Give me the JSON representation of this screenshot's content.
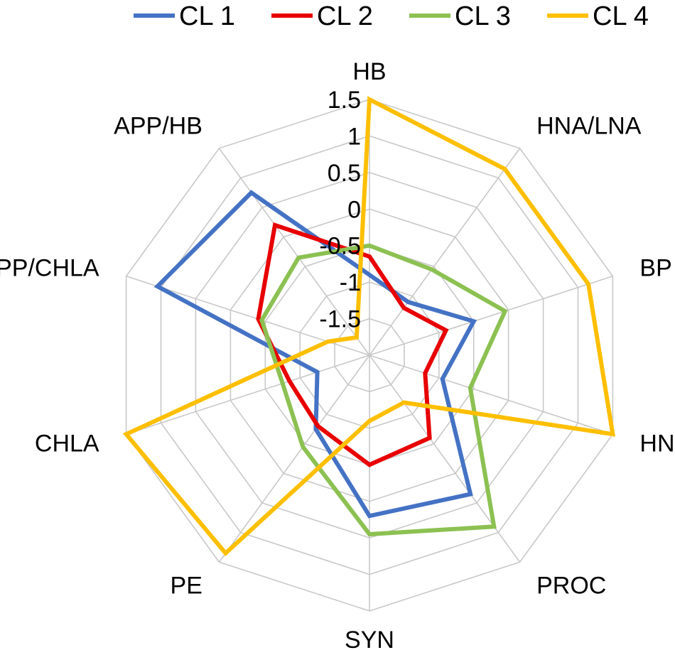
{
  "chart_data": {
    "type": "radar",
    "title": "",
    "axes": [
      "HB",
      "HNA/LNA",
      "BP",
      "HNF",
      "PROC",
      "SYN",
      "PE",
      "CHLA",
      "APP/CHLA",
      "APP/HB"
    ],
    "ticks": [
      "-1.5",
      "-1",
      "-0.5",
      "0",
      "0.5",
      "1",
      "1.5"
    ],
    "range": [
      -2,
      1.5
    ],
    "grid": true,
    "legend_position": "top",
    "series": [
      {
        "name": "CL 1",
        "color": "#4472C4",
        "values": [
          -0.9,
          -1.1,
          -0.5,
          -0.95,
          0.35,
          0.2,
          -0.75,
          -1.25,
          1.05,
          0.75
        ]
      },
      {
        "name": "CL 2",
        "color": "#E80000",
        "values": [
          -0.65,
          -1.2,
          -0.9,
          -1.2,
          -0.6,
          -0.5,
          -0.8,
          -0.85,
          -0.4,
          0.2
        ]
      },
      {
        "name": "CL 3",
        "color": "#8CC152",
        "values": [
          -0.5,
          -0.55,
          -0.05,
          -0.55,
          0.9,
          0.45,
          -0.45,
          -0.75,
          -0.45,
          -0.35
        ]
      },
      {
        "name": "CL 4",
        "color": "#FDBF00",
        "values": [
          1.5,
          1.15,
          1.15,
          1.5,
          -1.2,
          -1.1,
          1.35,
          1.5,
          -1.4,
          -1.7
        ]
      }
    ]
  }
}
